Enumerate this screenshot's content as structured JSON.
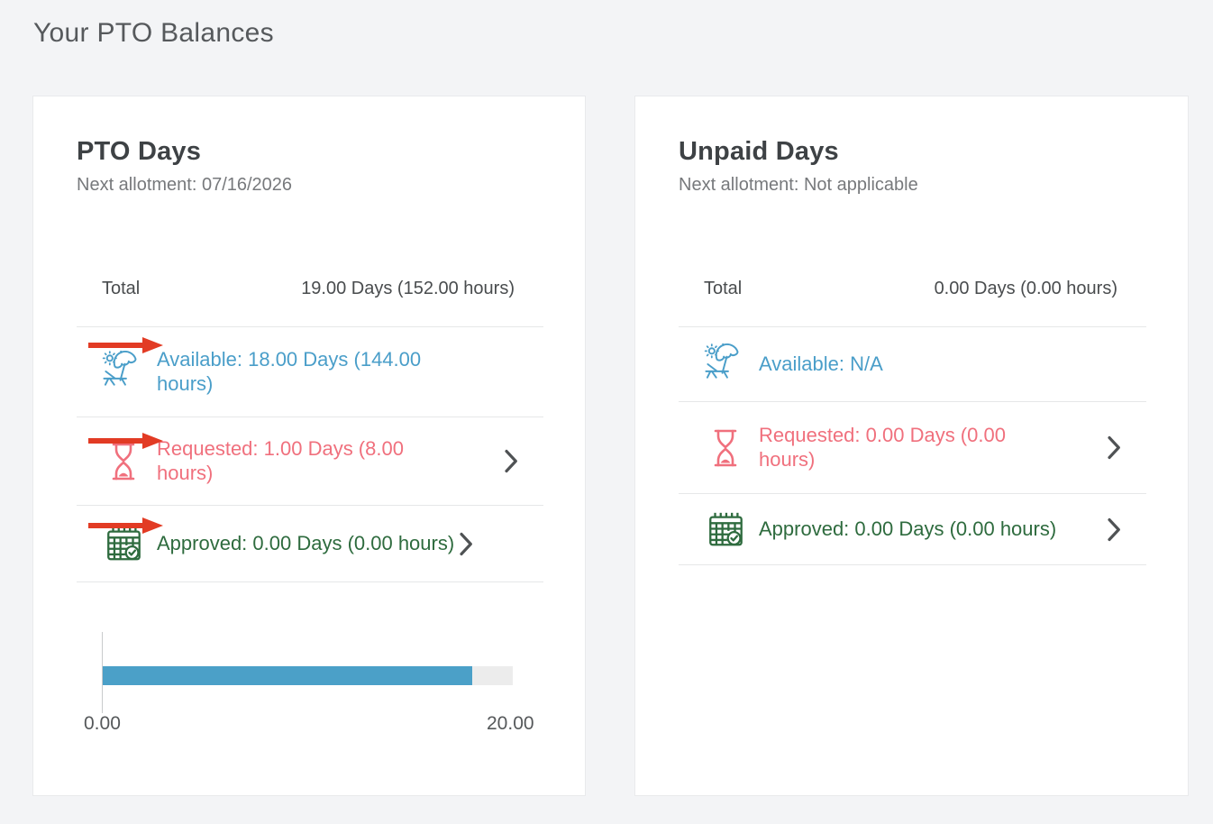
{
  "page": {
    "title": "Your PTO Balances"
  },
  "colors": {
    "page_bg": "#f3f4f6",
    "card_bg": "#ffffff",
    "available": "#4a9ec9",
    "requested": "#f0707d",
    "approved": "#2e6b3e",
    "arrow": "#e23b24",
    "chevron": "#4f5254",
    "bar_fill": "#4ba0c8",
    "bar_track": "#ececec"
  },
  "cards": [
    {
      "title": "PTO Days",
      "subtitle": "Next allotment: 07/16/2026",
      "total": {
        "label": "Total",
        "value": "19.00 Days (152.00 hours)"
      },
      "rows": [
        {
          "id": "available",
          "icon": "beach-chair-icon",
          "label": "Available: 18.00 Days (144.00 hours)",
          "color": "#4a9ec9",
          "chevron": false,
          "annotation_arrow": true
        },
        {
          "id": "requested",
          "icon": "hourglass-icon",
          "label": "Requested: 1.00 Days (8.00 hours)",
          "color": "#f0707d",
          "chevron": true,
          "annotation_arrow": true
        },
        {
          "id": "approved",
          "icon": "calendar-check-icon",
          "label": "Approved: 0.00 Days (0.00 hours)",
          "color": "#2e6b3e",
          "chevron": true,
          "annotation_arrow": true
        }
      ],
      "chart": {
        "type": "bar",
        "value": 18.0,
        "max": 20.0,
        "min_label": "0.00",
        "max_label": "20.00"
      }
    },
    {
      "title": "Unpaid Days",
      "subtitle": "Next allotment: Not applicable",
      "total": {
        "label": "Total",
        "value": "0.00 Days (0.00 hours)"
      },
      "rows": [
        {
          "id": "available",
          "icon": "beach-chair-icon",
          "label": "Available: N/A",
          "color": "#4a9ec9",
          "chevron": false,
          "annotation_arrow": false
        },
        {
          "id": "requested",
          "icon": "hourglass-icon",
          "label": "Requested: 0.00 Days (0.00 hours)",
          "color": "#f0707d",
          "chevron": true,
          "annotation_arrow": false
        },
        {
          "id": "approved",
          "icon": "calendar-check-icon",
          "label": "Approved: 0.00 Days (0.00 hours)",
          "color": "#2e6b3e",
          "chevron": true,
          "annotation_arrow": false
        }
      ],
      "chart": null
    }
  ],
  "chart_data": {
    "type": "bar",
    "series": [
      {
        "name": "PTO Days",
        "values": [
          18.0
        ]
      }
    ],
    "xlim": [
      0,
      20
    ],
    "tick_labels": [
      "0.00",
      "20.00"
    ],
    "orientation": "horizontal"
  }
}
